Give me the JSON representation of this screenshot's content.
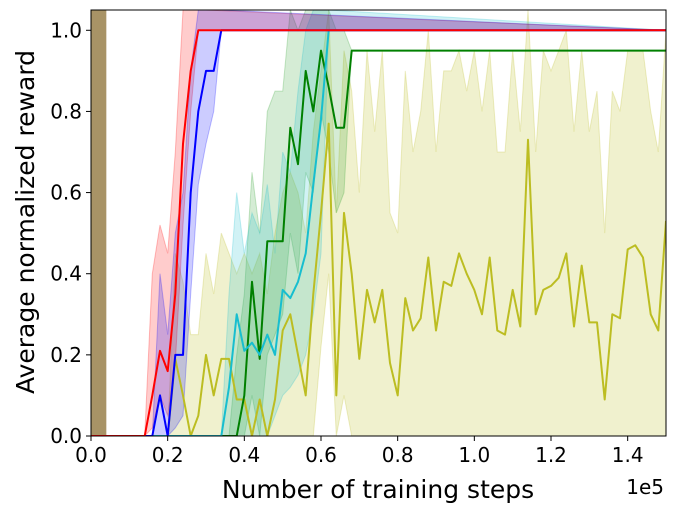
{
  "chart_data": {
    "type": "line",
    "title": "",
    "xlabel": "Number of training steps",
    "ylabel": "Average normalized reward",
    "x_offset_label": "1e5",
    "xlim": [
      0,
      150000
    ],
    "ylim": [
      0,
      1.05
    ],
    "xticks": [
      0,
      20000,
      40000,
      60000,
      80000,
      100000,
      120000,
      140000
    ],
    "xtick_labels": [
      "0.0",
      "0.2",
      "0.4",
      "0.6",
      "0.8",
      "1.0",
      "1.2",
      "1.4"
    ],
    "yticks": [
      0,
      0.2,
      0.4,
      0.6,
      0.8,
      1.0
    ],
    "ytick_labels": [
      "0.0",
      "0.2",
      "0.4",
      "0.6",
      "0.8",
      "1.0"
    ],
    "grid": false,
    "legend": "none",
    "colors": {
      "red": "#ff0000",
      "blue": "#0000ff",
      "cyan": "#17becf",
      "green": "#008000",
      "yellow": "#bcbd22",
      "brown": "#8c7a4a"
    },
    "band_at_start": {
      "x": [
        0,
        4000
      ],
      "color": "#a89366"
    },
    "series": [
      {
        "color": "#ff0000",
        "band_color": "#ff0000",
        "x": [
          0,
          14000,
          16000,
          18000,
          20000,
          22000,
          24000,
          26000,
          28000,
          30000,
          150000
        ],
        "y": [
          0,
          0,
          0.1,
          0.21,
          0.16,
          0.35,
          0.72,
          0.9,
          1.0,
          1.0,
          1.0
        ],
        "y_lower": [
          0,
          0,
          0.02,
          0.1,
          0.05,
          0.18,
          0.52,
          0.8,
          1.0,
          1.0,
          1.0
        ],
        "y_upper": [
          0,
          0,
          0.4,
          0.52,
          0.45,
          0.7,
          1.05,
          1.05,
          1.05,
          1.05,
          1.0
        ]
      },
      {
        "color": "#0000ff",
        "band_color": "#0000ff",
        "x": [
          0,
          16000,
          18000,
          20000,
          22000,
          24000,
          26000,
          28000,
          30000,
          32000,
          34000,
          150000
        ],
        "y": [
          0,
          0,
          0.1,
          0.0,
          0.2,
          0.2,
          0.6,
          0.8,
          0.9,
          0.9,
          1.0,
          1.0
        ],
        "y_lower": [
          0,
          0,
          0.0,
          0.0,
          0.02,
          0.05,
          0.35,
          0.62,
          0.72,
          0.8,
          1.0,
          1.0
        ],
        "y_upper": [
          0,
          0,
          0.4,
          0.25,
          0.5,
          0.6,
          0.9,
          1.05,
          1.05,
          1.05,
          1.05,
          1.0
        ]
      },
      {
        "color": "#17becf",
        "band_color": "#17becf",
        "x": [
          0,
          34000,
          36000,
          38000,
          40000,
          42000,
          44000,
          46000,
          48000,
          50000,
          52000,
          54000,
          56000,
          58000,
          60000,
          62000,
          150000
        ],
        "y": [
          0,
          0,
          0.12,
          0.3,
          0.21,
          0.23,
          0.2,
          0.25,
          0.2,
          0.36,
          0.34,
          0.38,
          0.45,
          0.62,
          0.78,
          1.0,
          1.0
        ],
        "y_lower": [
          0,
          0,
          0.0,
          0.0,
          0.0,
          0.0,
          0.0,
          0.0,
          0.05,
          0.1,
          0.12,
          0.15,
          0.2,
          0.3,
          0.45,
          1.0,
          1.0
        ],
        "y_upper": [
          0,
          0,
          0.35,
          0.6,
          0.45,
          0.55,
          0.5,
          0.62,
          0.45,
          0.7,
          0.65,
          0.85,
          1.0,
          1.05,
          1.05,
          1.05,
          1.0
        ]
      },
      {
        "color": "#008000",
        "band_color": "#2ca02c",
        "x": [
          0,
          36000,
          38000,
          40000,
          42000,
          44000,
          46000,
          48000,
          50000,
          52000,
          54000,
          56000,
          58000,
          60000,
          62000,
          64000,
          66000,
          68000,
          150000
        ],
        "y": [
          0,
          0,
          0.0,
          0.1,
          0.38,
          0.19,
          0.48,
          0.48,
          0.48,
          0.76,
          0.67,
          0.9,
          0.8,
          0.95,
          0.86,
          0.76,
          0.76,
          0.95,
          0.95
        ],
        "y_lower": [
          0,
          0,
          0.0,
          0.0,
          0.1,
          0.0,
          0.2,
          0.25,
          0.3,
          0.5,
          0.4,
          0.65,
          0.6,
          0.8,
          0.7,
          0.55,
          0.6,
          0.95,
          0.95
        ],
        "y_upper": [
          0,
          0,
          0.2,
          0.35,
          0.65,
          0.5,
          0.8,
          0.85,
          0.85,
          1.05,
          1.0,
          1.05,
          1.05,
          1.05,
          1.05,
          1.0,
          1.0,
          0.95,
          0.95
        ]
      },
      {
        "color": "#bcbd22",
        "band_color": "#bcbd22",
        "x": [
          0,
          20000,
          22000,
          24000,
          26000,
          28000,
          30000,
          32000,
          34000,
          36000,
          38000,
          40000,
          42000,
          44000,
          46000,
          48000,
          50000,
          52000,
          54000,
          56000,
          58000,
          60000,
          62000,
          64000,
          66000,
          68000,
          70000,
          72000,
          74000,
          76000,
          78000,
          80000,
          82000,
          84000,
          86000,
          88000,
          90000,
          92000,
          94000,
          96000,
          98000,
          100000,
          102000,
          104000,
          106000,
          108000,
          110000,
          112000,
          114000,
          116000,
          118000,
          120000,
          122000,
          124000,
          126000,
          128000,
          130000,
          132000,
          134000,
          136000,
          138000,
          140000,
          142000,
          144000,
          146000,
          148000,
          150000
        ],
        "y": [
          0,
          0,
          0.19,
          0.1,
          0.0,
          0.05,
          0.2,
          0.1,
          0.19,
          0.19,
          0.09,
          0.09,
          0.0,
          0.09,
          0.0,
          0.09,
          0.26,
          0.3,
          0.2,
          0.1,
          0.35,
          0.55,
          0.77,
          0.1,
          0.55,
          0.4,
          0.19,
          0.36,
          0.28,
          0.36,
          0.18,
          0.1,
          0.34,
          0.26,
          0.29,
          0.44,
          0.26,
          0.38,
          0.37,
          0.45,
          0.4,
          0.36,
          0.3,
          0.44,
          0.26,
          0.25,
          0.36,
          0.27,
          0.73,
          0.3,
          0.36,
          0.37,
          0.39,
          0.45,
          0.27,
          0.42,
          0.28,
          0.28,
          0.09,
          0.3,
          0.29,
          0.46,
          0.47,
          0.44,
          0.3,
          0.26,
          0.53
        ],
        "y_lower": [
          0,
          0,
          0.0,
          0.0,
          0.0,
          0.0,
          0.0,
          0.0,
          0.0,
          0.0,
          0.0,
          0.0,
          0.0,
          0.0,
          0.0,
          0.0,
          0.0,
          0.0,
          0.0,
          0.0,
          0.0,
          0.22,
          0.4,
          0.0,
          0.1,
          0.0,
          0.0,
          0.0,
          0.0,
          0.0,
          0.0,
          0.0,
          0.0,
          0.0,
          0.0,
          0.0,
          0.0,
          0.0,
          0.0,
          0.0,
          0.0,
          0.0,
          0.0,
          0.0,
          0.0,
          0.0,
          0.0,
          0.0,
          0.0,
          0.0,
          0.0,
          0.0,
          0.0,
          0.0,
          0.0,
          0.0,
          0.0,
          0.0,
          0.0,
          0.0,
          0.0,
          0.0,
          0.0,
          0.0,
          0.0,
          0.0,
          0.0
        ],
        "y_upper": [
          0,
          0,
          0.45,
          0.38,
          0.25,
          0.25,
          0.45,
          0.35,
          0.5,
          0.45,
          0.4,
          0.45,
          0.4,
          0.45,
          0.35,
          0.5,
          0.6,
          0.65,
          0.6,
          0.5,
          0.75,
          0.9,
          1.05,
          0.55,
          0.95,
          0.85,
          0.6,
          0.95,
          0.75,
          0.95,
          0.55,
          0.5,
          0.9,
          0.7,
          0.8,
          1.0,
          0.7,
          0.9,
          0.9,
          0.95,
          0.85,
          0.95,
          0.8,
          0.95,
          0.7,
          0.7,
          0.95,
          0.75,
          1.05,
          0.7,
          0.95,
          0.9,
          0.95,
          1.0,
          0.75,
          0.95,
          0.75,
          0.85,
          0.5,
          0.85,
          0.8,
          0.95,
          0.95,
          0.95,
          0.8,
          0.7,
          1.0
        ]
      }
    ]
  }
}
